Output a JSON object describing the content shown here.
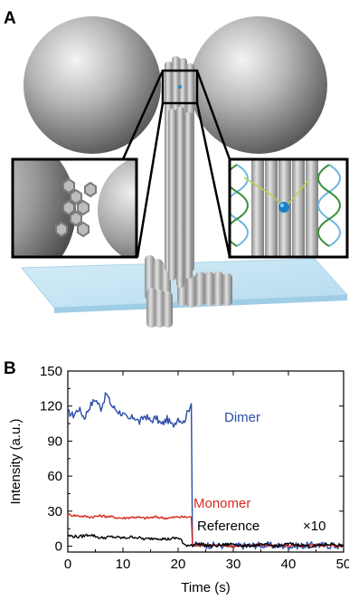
{
  "panel_a": {
    "letter": "A"
  },
  "panel_b": {
    "letter": "B"
  },
  "chart_data": {
    "type": "line",
    "title": "",
    "xlabel": "Time (s)",
    "ylabel": "Intensity (a.u.)",
    "xlim": [
      0,
      50
    ],
    "ylim": [
      -5,
      150
    ],
    "x_ticks": [
      0,
      10,
      20,
      30,
      40,
      50
    ],
    "y_ticks": [
      0,
      30,
      60,
      90,
      120,
      150
    ],
    "x_tick_labels": [
      "0",
      "10",
      "20",
      "30",
      "40",
      "50"
    ],
    "y_tick_labels": [
      "0",
      "30",
      "60",
      "90",
      "120",
      "150"
    ],
    "annotation": "×10",
    "series": [
      {
        "name": "Dimer",
        "color": "#2a4ea8",
        "x": [
          0,
          1,
          2,
          3,
          4,
          5,
          6,
          7,
          7.5,
          8,
          9,
          10,
          11,
          12,
          13,
          14,
          15,
          16,
          17,
          18,
          19,
          20,
          21,
          22,
          22.4,
          22.6,
          23,
          25,
          30,
          35,
          40,
          45,
          50
        ],
        "y": [
          115,
          112,
          118,
          110,
          120,
          126,
          118,
          131,
          125,
          120,
          116,
          113,
          108,
          111,
          106,
          112,
          107,
          110,
          104,
          109,
          103,
          110,
          106,
          118,
          122,
          2,
          1,
          1,
          0,
          1,
          0,
          1,
          0
        ]
      },
      {
        "name": "Monomer",
        "color": "#d62b1f",
        "x": [
          0,
          2,
          4,
          6,
          8,
          10,
          12,
          14,
          16,
          18,
          20,
          22,
          22.4,
          22.6,
          25,
          30,
          35,
          40,
          45,
          50
        ],
        "y": [
          27,
          26,
          25,
          26,
          25,
          24,
          25,
          24,
          25,
          24,
          25,
          25,
          25,
          1,
          1,
          0,
          1,
          0,
          1,
          0
        ]
      },
      {
        "name": "Reference",
        "color": "#000000",
        "x": [
          0,
          2,
          4,
          6,
          8,
          10,
          12,
          14,
          16,
          18,
          20,
          20.5,
          21,
          22,
          24,
          26,
          28,
          30,
          32,
          34,
          36,
          38,
          40,
          42,
          44,
          46,
          48,
          50
        ],
        "y": [
          9,
          8,
          10,
          7,
          8,
          7,
          8,
          6,
          7,
          6,
          7,
          6,
          1,
          1,
          2,
          0,
          1,
          2,
          0,
          1,
          1,
          0,
          2,
          1,
          0,
          1,
          2,
          0
        ]
      }
    ]
  }
}
